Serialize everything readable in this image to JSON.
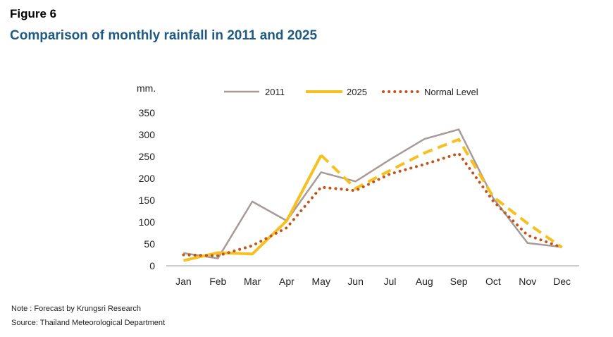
{
  "figure_label": "Figure 6",
  "title": "Comparison of monthly rainfall in 2011 and 2025",
  "notes": {
    "note": "Note : Forecast by Krungsri Research",
    "source": "Source: Thailand Meteorological Department"
  },
  "chart_data": {
    "type": "line",
    "title": "Comparison of monthly rainfall in 2011 and 2025",
    "ylabel": "mm.",
    "xlabel": "",
    "ylim": [
      0,
      350
    ],
    "yticks": [
      0,
      50,
      100,
      150,
      200,
      250,
      300,
      350
    ],
    "grid": false,
    "legend": "top",
    "categories": [
      "Jan",
      "Feb",
      "Mar",
      "Apr",
      "May",
      "Jun",
      "Jul",
      "Aug",
      "Sep",
      "Oct",
      "Nov",
      "Dec"
    ],
    "series": [
      {
        "name": "2011",
        "color": "#a89a98",
        "style": "solid",
        "values": [
          29,
          17,
          147,
          103,
          214,
          193,
          243,
          290,
          312,
          155,
          52,
          43
        ]
      },
      {
        "name": "2025",
        "color": "#f6c021",
        "style": "solid-then-dashed",
        "forecast_from_index": 4,
        "values": [
          12,
          30,
          27,
          103,
          253,
          177,
          218,
          258,
          289,
          158,
          97,
          42
        ]
      },
      {
        "name": "Normal Level",
        "color": "#c0561c",
        "style": "dotted",
        "values": [
          25,
          23,
          46,
          87,
          180,
          172,
          210,
          232,
          257,
          148,
          70,
          42
        ]
      }
    ]
  }
}
